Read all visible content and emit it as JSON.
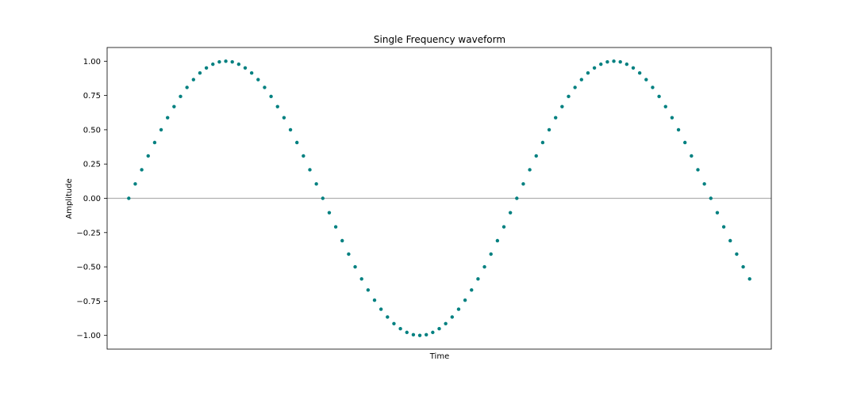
{
  "chart_data": {
    "type": "scatter",
    "title": "Single Frequency waveform",
    "xlabel": "Time",
    "ylabel": "Amplitude",
    "x_ticks_shown": false,
    "grid": false,
    "legend": "none",
    "ylim": [
      -1.1,
      1.1
    ],
    "xlim": [
      -3.35,
      99.35
    ],
    "yticks": [
      -1.0,
      -0.75,
      -0.5,
      -0.25,
      0.0,
      0.25,
      0.5,
      0.75,
      1.0
    ],
    "ytick_labels": [
      "−1.00",
      "−0.75",
      "−0.50",
      "−0.25",
      "0.00",
      "0.25",
      "0.50",
      "0.75",
      "1.00"
    ],
    "reference_line": {
      "y": 0,
      "color": "#b0b0b0"
    },
    "marker_color": "#008080",
    "series": [
      {
        "x": [
          0,
          1,
          2,
          3,
          4,
          5,
          6,
          7,
          8,
          9,
          10,
          11,
          12,
          13,
          14,
          15,
          16,
          17,
          18,
          19,
          20,
          21,
          22,
          23,
          24,
          25,
          26,
          27,
          28,
          29,
          30,
          31,
          32,
          33,
          34,
          35,
          36,
          37,
          38,
          39,
          40,
          41,
          42,
          43,
          44,
          45,
          46,
          47,
          48,
          49,
          50,
          51,
          52,
          53,
          54,
          55,
          56,
          57,
          58,
          59,
          60,
          61,
          62,
          63,
          64,
          65,
          66,
          67,
          68,
          69,
          70,
          71,
          72,
          73,
          74,
          75,
          76,
          77,
          78,
          79,
          80,
          81,
          82,
          83,
          84,
          85,
          86,
          87,
          88,
          89,
          90,
          91,
          92,
          93,
          94,
          95,
          96
        ],
        "y": [
          0.0,
          0.105,
          0.208,
          0.309,
          0.407,
          0.5,
          0.588,
          0.669,
          0.743,
          0.809,
          0.866,
          0.914,
          0.951,
          0.978,
          0.995,
          1.0,
          0.995,
          0.978,
          0.951,
          0.914,
          0.866,
          0.809,
          0.743,
          0.669,
          0.588,
          0.5,
          0.407,
          0.309,
          0.208,
          0.105,
          0.0,
          -0.105,
          -0.208,
          -0.309,
          -0.407,
          -0.5,
          -0.588,
          -0.669,
          -0.743,
          -0.809,
          -0.866,
          -0.914,
          -0.951,
          -0.978,
          -0.995,
          -1.0,
          -0.995,
          -0.978,
          -0.951,
          -0.914,
          -0.866,
          -0.809,
          -0.743,
          -0.669,
          -0.588,
          -0.5,
          -0.407,
          -0.309,
          -0.208,
          -0.105,
          0.0,
          0.105,
          0.208,
          0.309,
          0.407,
          0.5,
          0.588,
          0.669,
          0.743,
          0.809,
          0.866,
          0.914,
          0.951,
          0.978,
          0.995,
          1.0,
          0.995,
          0.978,
          0.951,
          0.914,
          0.866,
          0.809,
          0.743,
          0.669,
          0.588,
          0.5,
          0.407,
          0.309,
          0.208,
          0.105,
          0.0,
          -0.105,
          -0.208,
          -0.309,
          -0.407,
          -0.5,
          -0.588
        ]
      }
    ]
  }
}
